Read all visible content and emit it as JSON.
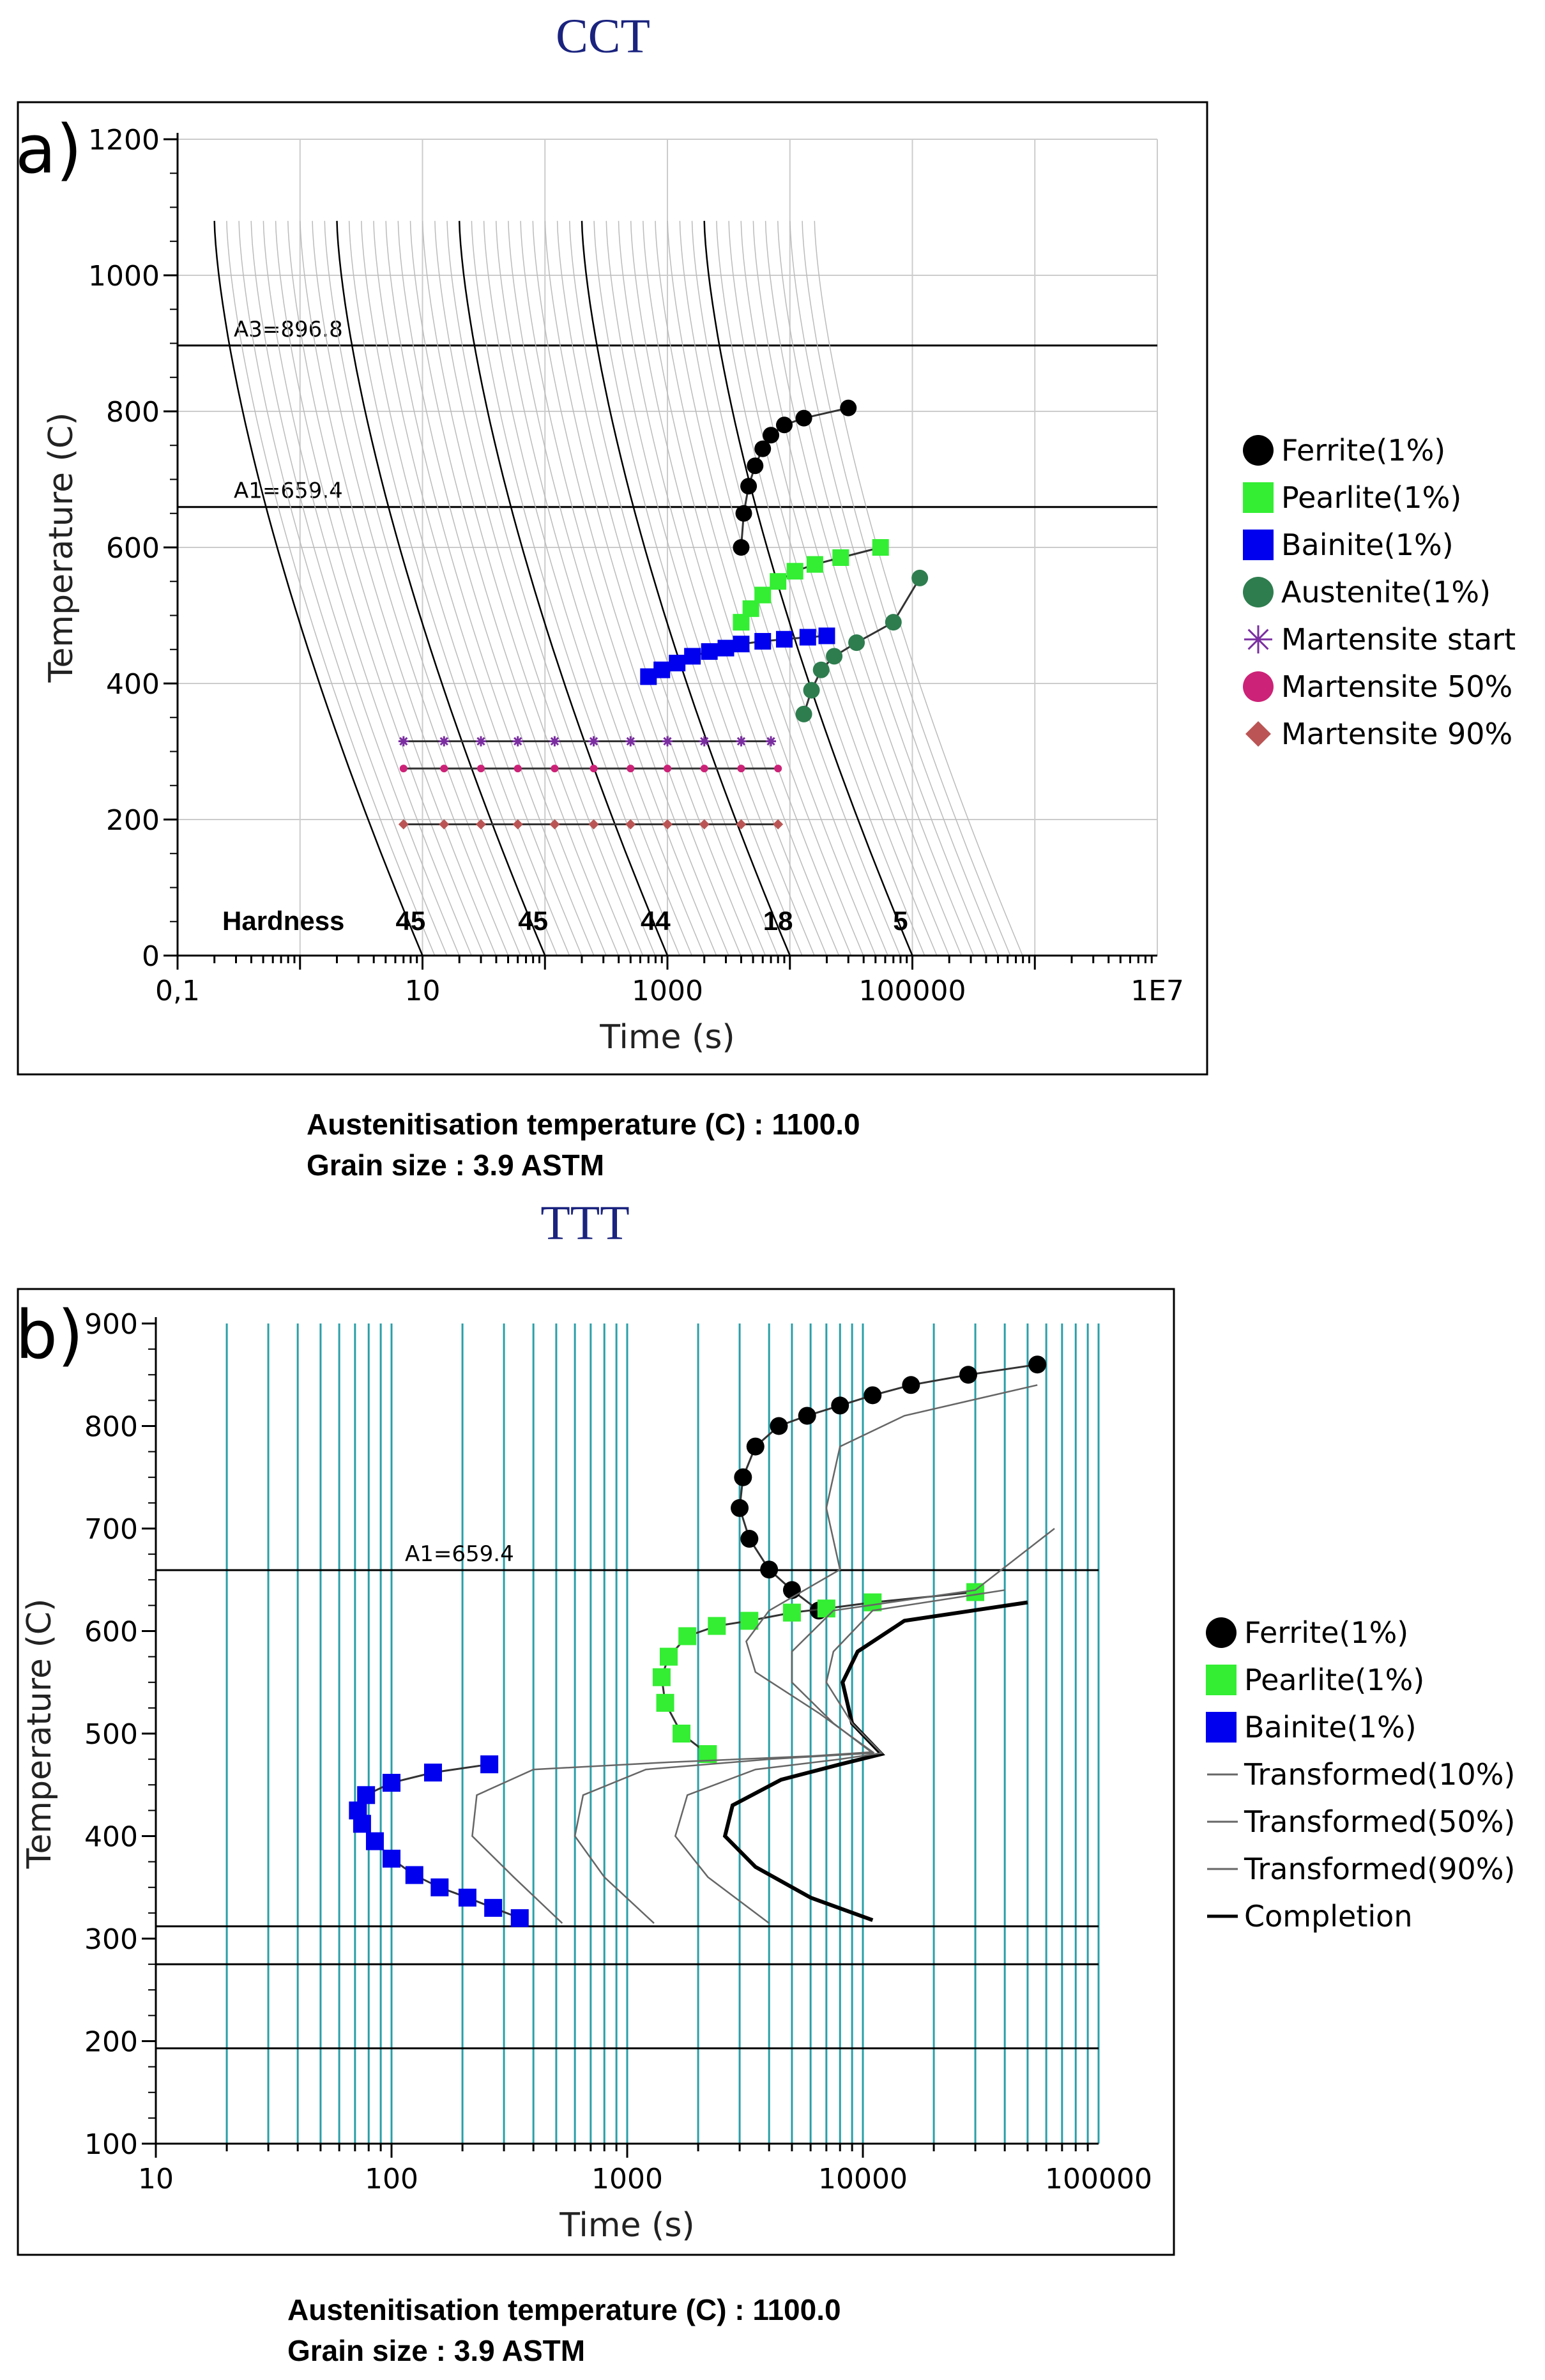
{
  "chart_data": [
    {
      "type": "line",
      "panel_label": "a)",
      "title": "CCT",
      "xlabel": "Time (s)",
      "ylabel": "Temperature (C)",
      "x_scale": "log",
      "xlim": [
        0.1,
        10000000
      ],
      "ylim": [
        0,
        1200
      ],
      "x_tick_labels": [
        {
          "value": 0.1,
          "label": "0,1"
        },
        {
          "value": 10,
          "label": "10"
        },
        {
          "value": 1000,
          "label": "1000"
        },
        {
          "value": 100000,
          "label": "100000"
        },
        {
          "value": 10000000,
          "label": "1E7"
        }
      ],
      "y_ticks": [
        0,
        200,
        400,
        600,
        800,
        1000,
        1200
      ],
      "reference_lines": [
        {
          "y": 896.8,
          "label": "A3=896.8"
        },
        {
          "y": 659.4,
          "label": "A1=659.4"
        }
      ],
      "hardness_label": "Hardness",
      "hardness_values": [
        {
          "x": 8,
          "label": "45"
        },
        {
          "x": 80,
          "label": "45"
        },
        {
          "x": 800,
          "label": "44"
        },
        {
          "x": 8000,
          "label": "18"
        },
        {
          "x": 80000,
          "label": "5"
        }
      ],
      "cooling_curve_endpoints": [
        {
          "start": [
            0.2,
            1080
          ],
          "end": [
            10,
            0
          ]
        },
        {
          "start": [
            2,
            1080
          ],
          "end": [
            100,
            0
          ]
        },
        {
          "start": [
            20,
            1080
          ],
          "end": [
            1000,
            0
          ]
        },
        {
          "start": [
            200,
            1080
          ],
          "end": [
            10000,
            0
          ]
        },
        {
          "start": [
            2000,
            1080
          ],
          "end": [
            100000,
            0
          ]
        }
      ],
      "series": [
        {
          "name": "Ferrite(1%)",
          "color": "#000000",
          "marker": "circle",
          "points": [
            [
              4000,
              600
            ],
            [
              4200,
              650
            ],
            [
              4600,
              690
            ],
            [
              5200,
              720
            ],
            [
              6000,
              745
            ],
            [
              7000,
              765
            ],
            [
              9000,
              780
            ],
            [
              13000,
              790
            ],
            [
              30000,
              805
            ]
          ]
        },
        {
          "name": "Pearlite(1%)",
          "color": "#33ee33",
          "marker": "square",
          "points": [
            [
              4000,
              490
            ],
            [
              4800,
              510
            ],
            [
              6000,
              530
            ],
            [
              8000,
              550
            ],
            [
              11000,
              565
            ],
            [
              16000,
              575
            ],
            [
              26000,
              585
            ],
            [
              55000,
              600
            ]
          ]
        },
        {
          "name": "Bainite(1%)",
          "color": "#0000ee",
          "marker": "square",
          "points": [
            [
              700,
              410
            ],
            [
              900,
              420
            ],
            [
              1200,
              430
            ],
            [
              1600,
              440
            ],
            [
              2200,
              447
            ],
            [
              3000,
              452
            ],
            [
              4000,
              458
            ],
            [
              6000,
              462
            ],
            [
              9000,
              465
            ],
            [
              14000,
              468
            ],
            [
              20000,
              470
            ]
          ]
        },
        {
          "name": "Austenite(1%)",
          "color": "#2e7d4f",
          "marker": "circle",
          "points": [
            [
              13000,
              355
            ],
            [
              15000,
              390
            ],
            [
              18000,
              420
            ],
            [
              23000,
              440
            ],
            [
              35000,
              460
            ],
            [
              70000,
              490
            ],
            [
              115000,
              555
            ]
          ]
        },
        {
          "name": "Martensite start",
          "color": "#7a2ea0",
          "marker": "asterisk",
          "points": [
            [
              7,
              315
            ],
            [
              15,
              315
            ],
            [
              30,
              315
            ],
            [
              60,
              315
            ],
            [
              120,
              315
            ],
            [
              250,
              315
            ],
            [
              500,
              315
            ],
            [
              1000,
              315
            ],
            [
              2000,
              315
            ],
            [
              4000,
              315
            ],
            [
              7000,
              315
            ]
          ]
        },
        {
          "name": "Martensite 50%",
          "color": "#cc2277",
          "marker": "circle",
          "points": [
            [
              7,
              275
            ],
            [
              15,
              275
            ],
            [
              30,
              275
            ],
            [
              60,
              275
            ],
            [
              120,
              275
            ],
            [
              250,
              275
            ],
            [
              500,
              275
            ],
            [
              1000,
              275
            ],
            [
              2000,
              275
            ],
            [
              4000,
              275
            ],
            [
              8000,
              275
            ]
          ]
        },
        {
          "name": "Martensite 90%",
          "color": "#bb5555",
          "marker": "diamond",
          "points": [
            [
              7,
              193
            ],
            [
              15,
              193
            ],
            [
              30,
              193
            ],
            [
              60,
              193
            ],
            [
              120,
              193
            ],
            [
              250,
              193
            ],
            [
              500,
              193
            ],
            [
              1000,
              193
            ],
            [
              2000,
              193
            ],
            [
              4000,
              193
            ],
            [
              8000,
              193
            ]
          ]
        }
      ],
      "footer": [
        "Austenitisation temperature (C) : 1100.0",
        "Grain size : 3.9 ASTM"
      ]
    },
    {
      "type": "line",
      "panel_label": "b)",
      "title": "TTT",
      "xlabel": "Time (s)",
      "ylabel": "Temperature (C)",
      "x_scale": "log",
      "xlim": [
        10,
        100000
      ],
      "ylim": [
        100,
        900
      ],
      "x_tick_labels": [
        {
          "value": 10,
          "label": "10"
        },
        {
          "value": 100,
          "label": "100"
        },
        {
          "value": 1000,
          "label": "1000"
        },
        {
          "value": 10000,
          "label": "10000"
        },
        {
          "value": 100000,
          "label": "100000"
        }
      ],
      "y_ticks": [
        100,
        200,
        300,
        400,
        500,
        600,
        700,
        800,
        900
      ],
      "reference_lines": [
        {
          "y": 659.4,
          "label": "A1=659.4"
        },
        {
          "y": 312,
          "label": ""
        },
        {
          "y": 275,
          "label": ""
        },
        {
          "y": 193,
          "label": ""
        }
      ],
      "series": [
        {
          "name": "Ferrite(1%)",
          "color": "#000000",
          "marker": "circle",
          "points": [
            [
              6500,
              620
            ],
            [
              5000,
              640
            ],
            [
              4000,
              660
            ],
            [
              3300,
              690
            ],
            [
              3000,
              720
            ],
            [
              3100,
              750
            ],
            [
              3500,
              780
            ],
            [
              4400,
              800
            ],
            [
              5800,
              810
            ],
            [
              8000,
              820
            ],
            [
              11000,
              830
            ],
            [
              16000,
              840
            ],
            [
              28000,
              850
            ],
            [
              55000,
              860
            ]
          ]
        },
        {
          "name": "Pearlite(1%)",
          "color": "#33ee33",
          "marker": "square",
          "points": [
            [
              2200,
              480
            ],
            [
              1700,
              500
            ],
            [
              1450,
              530
            ],
            [
              1400,
              555
            ],
            [
              1500,
              575
            ],
            [
              1800,
              595
            ],
            [
              2400,
              605
            ],
            [
              3300,
              610
            ],
            [
              5000,
              618
            ],
            [
              7000,
              622
            ],
            [
              11000,
              628
            ],
            [
              30000,
              638
            ]
          ]
        },
        {
          "name": "Bainite(1%)",
          "color": "#0000ee",
          "marker": "square",
          "points": [
            [
              350,
              320
            ],
            [
              270,
              330
            ],
            [
              210,
              340
            ],
            [
              160,
              350
            ],
            [
              125,
              362
            ],
            [
              100,
              378
            ],
            [
              85,
              395
            ],
            [
              75,
              412
            ],
            [
              72,
              425
            ],
            [
              78,
              440
            ],
            [
              100,
              452
            ],
            [
              150,
              462
            ],
            [
              260,
              470
            ]
          ]
        },
        {
          "name": "Transformed(10%)",
          "color": "#666666",
          "marker": "none",
          "points": [
            [
              530,
              315
            ],
            [
              330,
              360
            ],
            [
              220,
              400
            ],
            [
              230,
              440
            ],
            [
              400,
              465
            ],
            [
              1500,
              472
            ],
            [
              6000,
              478
            ],
            [
              11000,
              482
            ],
            [
              6500,
              520
            ],
            [
              3500,
              560
            ],
            [
              3200,
              590
            ],
            [
              4000,
              620
            ],
            [
              8000,
              660
            ],
            [
              7000,
              720
            ],
            [
              8000,
              780
            ],
            [
              15000,
              810
            ],
            [
              55000,
              840
            ]
          ]
        },
        {
          "name": "Transformed(50%)",
          "color": "#666666",
          "marker": "none",
          "points": [
            [
              1300,
              315
            ],
            [
              800,
              360
            ],
            [
              600,
              400
            ],
            [
              650,
              440
            ],
            [
              1200,
              465
            ],
            [
              4000,
              475
            ],
            [
              11000,
              481
            ],
            [
              7500,
              510
            ],
            [
              5000,
              550
            ],
            [
              5000,
              580
            ],
            [
              7500,
              620
            ],
            [
              30000,
              640
            ],
            [
              65000,
              700
            ]
          ]
        },
        {
          "name": "Transformed(90%)",
          "color": "#666666",
          "marker": "none",
          "points": [
            [
              4000,
              315
            ],
            [
              2200,
              360
            ],
            [
              1600,
              400
            ],
            [
              1800,
              440
            ],
            [
              3500,
              465
            ],
            [
              8000,
              475
            ],
            [
              12000,
              481
            ],
            [
              9000,
              510
            ],
            [
              7000,
              550
            ],
            [
              7500,
              580
            ],
            [
              11000,
              620
            ],
            [
              40000,
              640
            ]
          ]
        }
      ],
      "completion": {
        "name": "Completion",
        "color": "#000000",
        "points": [
          [
            11000,
            318
          ],
          [
            6000,
            340
          ],
          [
            3500,
            370
          ],
          [
            2600,
            400
          ],
          [
            2800,
            430
          ],
          [
            4500,
            455
          ],
          [
            8000,
            470
          ],
          [
            12000,
            480
          ],
          [
            9000,
            510
          ],
          [
            8200,
            550
          ],
          [
            9500,
            580
          ],
          [
            15000,
            610
          ],
          [
            50000,
            628
          ]
        ]
      },
      "footer": [
        "Austenitisation temperature (C) : 1100.0",
        "Grain size : 3.9 ASTM"
      ]
    }
  ]
}
